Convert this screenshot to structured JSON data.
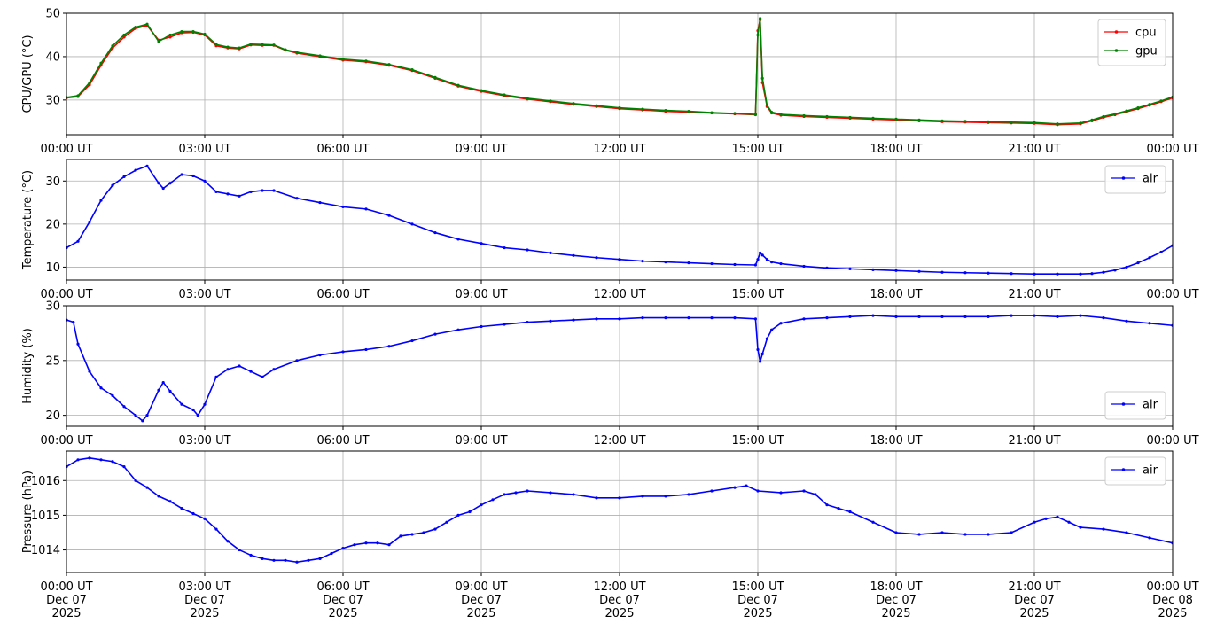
{
  "chart_data": [
    {
      "type": "line",
      "id": "cpu-gpu",
      "ylabel": "CPU/GPU (°C)",
      "ylim": [
        22,
        50
      ],
      "yticks": [
        30,
        40,
        50
      ],
      "xlim": [
        0,
        24
      ],
      "xticks": [
        0,
        3,
        6,
        9,
        12,
        15,
        18,
        21,
        24
      ],
      "xtick_labels": [
        "00:00 UT",
        "03:00 UT",
        "06:00 UT",
        "09:00 UT",
        "12:00 UT",
        "15:00 UT",
        "18:00 UT",
        "21:00 UT",
        "00:00 UT"
      ],
      "grid": true,
      "legend_loc": "upper right",
      "series": [
        {
          "name": "cpu",
          "color": "#ff0000",
          "x": [
            0,
            0.25,
            0.5,
            0.75,
            1.0,
            1.25,
            1.5,
            1.75,
            2.0,
            2.25,
            2.5,
            2.75,
            3.0,
            3.25,
            3.5,
            3.75,
            4.0,
            4.25,
            4.5,
            4.75,
            5.0,
            5.5,
            6.0,
            6.5,
            7.0,
            7.5,
            8.0,
            8.5,
            9.0,
            9.5,
            10.0,
            10.5,
            11.0,
            11.5,
            12.0,
            12.5,
            13.0,
            13.5,
            14.0,
            14.5,
            14.95,
            15.0,
            15.05,
            15.1,
            15.2,
            15.3,
            15.5,
            16.0,
            16.5,
            17.0,
            17.5,
            18.0,
            18.5,
            19.0,
            19.5,
            20.0,
            20.5,
            21.0,
            21.5,
            22.0,
            22.25,
            22.5,
            22.75,
            23.0,
            23.25,
            23.5,
            23.75,
            24.0
          ],
          "y": [
            30.5,
            30.8,
            33.5,
            38,
            42,
            44.5,
            46.5,
            47.2,
            43.8,
            44.5,
            45.5,
            45.6,
            45.0,
            42.5,
            42,
            41.8,
            42.7,
            42.6,
            42.6,
            41.5,
            40.8,
            40,
            39.2,
            38.8,
            38.0,
            36.8,
            35.0,
            33.2,
            32.0,
            31.0,
            30.2,
            29.6,
            29.0,
            28.5,
            28.0,
            27.7,
            27.4,
            27.2,
            27.0,
            26.8,
            26.6,
            46,
            48.5,
            34,
            28.5,
            27.0,
            26.5,
            26.2,
            26.0,
            25.8,
            25.6,
            25.4,
            25.2,
            25.0,
            24.9,
            24.8,
            24.7,
            24.6,
            24.3,
            24.5,
            25.2,
            26.0,
            26.6,
            27.3,
            28.0,
            28.8,
            29.6,
            30.5
          ]
        },
        {
          "name": "gpu",
          "color": "#008000",
          "x": [
            0,
            0.25,
            0.5,
            0.75,
            1.0,
            1.25,
            1.5,
            1.75,
            2.0,
            2.25,
            2.5,
            2.75,
            3.0,
            3.25,
            3.5,
            3.75,
            4.0,
            4.25,
            4.5,
            4.75,
            5.0,
            5.5,
            6.0,
            6.5,
            7.0,
            7.5,
            8.0,
            8.5,
            9.0,
            9.5,
            10.0,
            10.5,
            11.0,
            11.5,
            12.0,
            12.5,
            13.0,
            13.5,
            14.0,
            14.5,
            14.95,
            15.0,
            15.05,
            15.1,
            15.2,
            15.3,
            15.5,
            16.0,
            16.5,
            17.0,
            17.5,
            18.0,
            18.5,
            19.0,
            19.5,
            20.0,
            20.5,
            21.0,
            21.5,
            22.0,
            22.25,
            22.5,
            22.75,
            23.0,
            23.25,
            23.5,
            23.75,
            24.0
          ],
          "y": [
            30.6,
            31.0,
            34.0,
            38.5,
            42.5,
            45.0,
            46.8,
            47.5,
            43.5,
            45.0,
            45.8,
            45.8,
            45.2,
            42.8,
            42.2,
            42.0,
            42.9,
            42.8,
            42.7,
            41.6,
            41.0,
            40.2,
            39.4,
            39.0,
            38.2,
            37.0,
            35.2,
            33.4,
            32.2,
            31.2,
            30.4,
            29.8,
            29.2,
            28.7,
            28.2,
            27.9,
            27.6,
            27.4,
            27.1,
            26.9,
            26.7,
            45,
            48.8,
            35,
            28.8,
            27.2,
            26.7,
            26.4,
            26.2,
            26.0,
            25.8,
            25.6,
            25.4,
            25.2,
            25.1,
            25.0,
            24.9,
            24.8,
            24.5,
            24.7,
            25.4,
            26.2,
            26.8,
            27.5,
            28.2,
            29.0,
            29.8,
            30.7
          ]
        }
      ]
    },
    {
      "type": "line",
      "id": "temperature",
      "ylabel": "Temperature (°C)",
      "ylim": [
        7,
        35
      ],
      "yticks": [
        10,
        20,
        30
      ],
      "xlim": [
        0,
        24
      ],
      "xticks": [
        0,
        3,
        6,
        9,
        12,
        15,
        18,
        21,
        24
      ],
      "xtick_labels": [
        "00:00 UT",
        "03:00 UT",
        "06:00 UT",
        "09:00 UT",
        "12:00 UT",
        "15:00 UT",
        "18:00 UT",
        "21:00 UT",
        "00:00 UT"
      ],
      "grid": true,
      "legend_loc": "upper right",
      "series": [
        {
          "name": "air",
          "color": "#0000ff",
          "x": [
            0,
            0.25,
            0.5,
            0.75,
            1.0,
            1.25,
            1.5,
            1.75,
            2.0,
            2.1,
            2.25,
            2.5,
            2.75,
            3.0,
            3.25,
            3.5,
            3.75,
            4.0,
            4.25,
            4.5,
            5.0,
            5.5,
            6.0,
            6.5,
            7.0,
            7.5,
            8.0,
            8.5,
            9.0,
            9.5,
            10.0,
            10.5,
            11.0,
            11.5,
            12.0,
            12.5,
            13.0,
            13.5,
            14.0,
            14.5,
            14.95,
            15.0,
            15.05,
            15.1,
            15.2,
            15.3,
            15.5,
            16.0,
            16.5,
            17.0,
            17.5,
            18.0,
            18.5,
            19.0,
            19.5,
            20.0,
            20.5,
            21.0,
            21.5,
            22.0,
            22.25,
            22.5,
            22.75,
            23.0,
            23.25,
            23.5,
            23.75,
            24.0
          ],
          "y": [
            14.5,
            16.0,
            20.5,
            25.5,
            29.0,
            31.0,
            32.5,
            33.5,
            29.5,
            28.3,
            29.5,
            31.5,
            31.2,
            30.0,
            27.5,
            27.0,
            26.5,
            27.5,
            27.8,
            27.8,
            26.0,
            25.0,
            24.0,
            23.5,
            22.0,
            20.0,
            18.0,
            16.5,
            15.5,
            14.5,
            14.0,
            13.3,
            12.7,
            12.2,
            11.8,
            11.4,
            11.2,
            11.0,
            10.8,
            10.6,
            10.5,
            11.8,
            13.3,
            12.8,
            11.8,
            11.2,
            10.8,
            10.2,
            9.8,
            9.6,
            9.4,
            9.2,
            9.0,
            8.8,
            8.7,
            8.6,
            8.5,
            8.4,
            8.4,
            8.4,
            8.5,
            8.8,
            9.3,
            10.0,
            11.0,
            12.2,
            13.5,
            15.0
          ]
        }
      ]
    },
    {
      "type": "line",
      "id": "humidity",
      "ylabel": "Humidity (%)",
      "ylim": [
        19,
        30
      ],
      "yticks": [
        20,
        25,
        30
      ],
      "xlim": [
        0,
        24
      ],
      "xticks": [
        0,
        3,
        6,
        9,
        12,
        15,
        18,
        21,
        24
      ],
      "xtick_labels": [
        "00:00 UT",
        "03:00 UT",
        "06:00 UT",
        "09:00 UT",
        "12:00 UT",
        "15:00 UT",
        "18:00 UT",
        "21:00 UT",
        "00:00 UT"
      ],
      "grid": true,
      "legend_loc": "lower right",
      "series": [
        {
          "name": "air",
          "color": "#0000ff",
          "x": [
            0,
            0.15,
            0.25,
            0.5,
            0.75,
            1.0,
            1.25,
            1.5,
            1.65,
            1.75,
            2.0,
            2.1,
            2.25,
            2.5,
            2.75,
            2.85,
            3.0,
            3.25,
            3.5,
            3.75,
            4.0,
            4.25,
            4.5,
            5.0,
            5.5,
            6.0,
            6.5,
            7.0,
            7.5,
            8.0,
            8.5,
            9.0,
            9.5,
            10.0,
            10.5,
            11.0,
            11.5,
            12.0,
            12.5,
            13.0,
            13.5,
            14.0,
            14.5,
            14.95,
            15.0,
            15.05,
            15.1,
            15.2,
            15.3,
            15.5,
            16.0,
            16.5,
            17.0,
            17.5,
            18.0,
            18.5,
            19.0,
            19.5,
            20.0,
            20.5,
            21.0,
            21.5,
            22.0,
            22.5,
            23.0,
            23.5,
            24.0
          ],
          "y": [
            28.7,
            28.5,
            26.5,
            24.0,
            22.5,
            21.8,
            20.8,
            20.0,
            19.5,
            20.0,
            22.3,
            23.0,
            22.2,
            21.0,
            20.5,
            20.0,
            21.0,
            23.5,
            24.2,
            24.5,
            24.0,
            23.5,
            24.2,
            25.0,
            25.5,
            25.8,
            26.0,
            26.3,
            26.8,
            27.4,
            27.8,
            28.1,
            28.3,
            28.5,
            28.6,
            28.7,
            28.8,
            28.8,
            28.9,
            28.9,
            28.9,
            28.9,
            28.9,
            28.8,
            26.0,
            24.9,
            25.6,
            27.0,
            27.8,
            28.4,
            28.8,
            28.9,
            29.0,
            29.1,
            29.0,
            29.0,
            29.0,
            29.0,
            29.0,
            29.1,
            29.1,
            29.0,
            29.1,
            28.9,
            28.6,
            28.4,
            28.2
          ]
        }
      ]
    },
    {
      "type": "line",
      "id": "pressure",
      "ylabel": "Pressure (hPa)",
      "ylim": [
        1013.35,
        1016.85
      ],
      "yticks": [
        1014,
        1015,
        1016
      ],
      "xlim": [
        0,
        24
      ],
      "xticks": [
        0,
        3,
        6,
        9,
        12,
        15,
        18,
        21,
        24
      ],
      "xtick_labels": [
        "00:00 UT\nDec 07\n2025",
        "03:00 UT\nDec 07\n2025",
        "06:00 UT\nDec 07\n2025",
        "09:00 UT\nDec 07\n2025",
        "12:00 UT\nDec 07\n2025",
        "15:00 UT\nDec 07\n2025",
        "18:00 UT\nDec 07\n2025",
        "21:00 UT\nDec 07\n2025",
        "00:00 UT\nDec 08\n2025"
      ],
      "grid": true,
      "legend_loc": "upper right",
      "series": [
        {
          "name": "air",
          "color": "#0000ff",
          "x": [
            0,
            0.25,
            0.5,
            0.75,
            1.0,
            1.25,
            1.5,
            1.75,
            2.0,
            2.25,
            2.5,
            2.75,
            3.0,
            3.25,
            3.5,
            3.75,
            4.0,
            4.25,
            4.5,
            4.75,
            5.0,
            5.25,
            5.5,
            5.75,
            6.0,
            6.25,
            6.5,
            6.75,
            7.0,
            7.25,
            7.5,
            7.75,
            8.0,
            8.25,
            8.5,
            8.75,
            9.0,
            9.25,
            9.5,
            9.75,
            10.0,
            10.5,
            11.0,
            11.5,
            12.0,
            12.5,
            13.0,
            13.5,
            14.0,
            14.5,
            14.75,
            15.0,
            15.5,
            16.0,
            16.25,
            16.5,
            16.75,
            17.0,
            17.5,
            18.0,
            18.5,
            19.0,
            19.5,
            20.0,
            20.5,
            21.0,
            21.25,
            21.5,
            21.75,
            22.0,
            22.5,
            23.0,
            23.5,
            24.0
          ],
          "y": [
            1016.4,
            1016.6,
            1016.65,
            1016.6,
            1016.55,
            1016.4,
            1016.0,
            1015.8,
            1015.55,
            1015.4,
            1015.2,
            1015.05,
            1014.9,
            1014.6,
            1014.25,
            1014.0,
            1013.85,
            1013.75,
            1013.7,
            1013.7,
            1013.65,
            1013.7,
            1013.75,
            1013.9,
            1014.05,
            1014.15,
            1014.2,
            1014.2,
            1014.15,
            1014.4,
            1014.45,
            1014.5,
            1014.6,
            1014.8,
            1015.0,
            1015.1,
            1015.3,
            1015.45,
            1015.6,
            1015.65,
            1015.7,
            1015.65,
            1015.6,
            1015.5,
            1015.5,
            1015.55,
            1015.55,
            1015.6,
            1015.7,
            1015.8,
            1015.85,
            1015.7,
            1015.65,
            1015.7,
            1015.6,
            1015.3,
            1015.2,
            1015.1,
            1014.8,
            1014.5,
            1014.45,
            1014.5,
            1014.45,
            1014.45,
            1014.5,
            1014.8,
            1014.9,
            1014.95,
            1014.8,
            1014.65,
            1014.6,
            1014.5,
            1014.35,
            1014.2
          ]
        }
      ]
    }
  ]
}
